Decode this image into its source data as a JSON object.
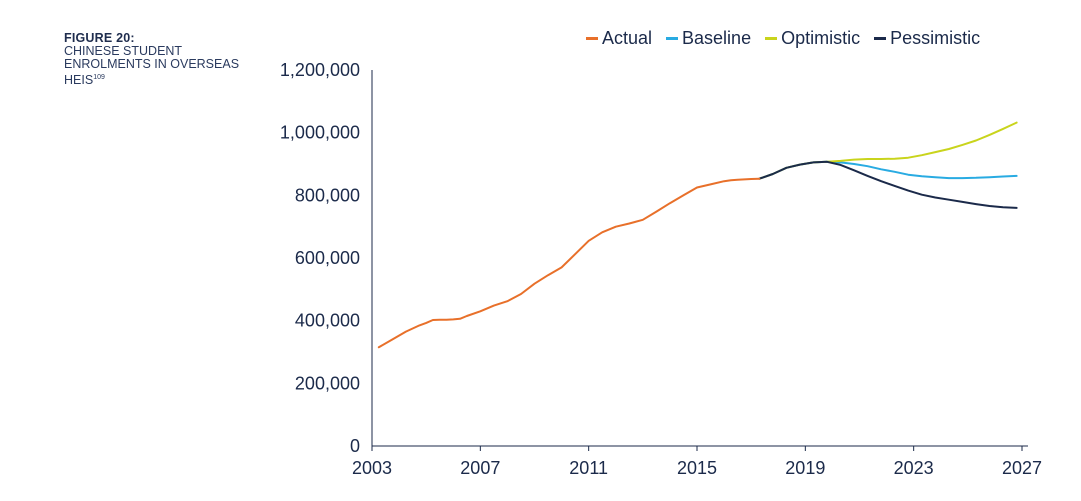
{
  "caption": {
    "number": "FIGURE 20:",
    "title": "CHINESE STUDENT ENROLMENTS IN OVERSEAS HEIS",
    "footnote": "109"
  },
  "chart_data": {
    "type": "line",
    "xlim": [
      2003,
      2027
    ],
    "ylim": [
      0,
      1200000
    ],
    "xticks": [
      2003,
      2007,
      2011,
      2015,
      2019,
      2023,
      2027
    ],
    "yticks": [
      0,
      200000,
      400000,
      600000,
      800000,
      1000000,
      1200000
    ],
    "xtick_labels": [
      "2003",
      "2007",
      "2011",
      "2015",
      "2019",
      "2023",
      "2027"
    ],
    "ytick_labels": [
      "0",
      "200,000",
      "400,000",
      "600,000",
      "800,000",
      "1,000,000",
      "1,200,000"
    ],
    "legend_position": "top-right",
    "series": [
      {
        "name": "Actual",
        "color": "#e8702a",
        "x": [
          2003.25,
          2003.75,
          2004.25,
          2004.75,
          2005.0,
          2005.25,
          2005.5,
          2005.75,
          2006.0,
          2006.25,
          2006.5,
          2007.0,
          2007.5,
          2008.0,
          2008.5,
          2009.0,
          2009.5,
          2010.0,
          2010.5,
          2011.0,
          2011.5,
          2012.0,
          2012.5,
          2013.0,
          2013.5,
          2014.0,
          2014.5,
          2015.0,
          2015.5,
          2016.0,
          2016.25,
          2016.5,
          2016.75,
          2017.0,
          2017.3
        ],
        "y": [
          315000,
          340000,
          365000,
          385000,
          393000,
          402000,
          403000,
          403000,
          404000,
          406000,
          415000,
          430000,
          448000,
          462000,
          485000,
          518000,
          545000,
          570000,
          612000,
          655000,
          682000,
          700000,
          710000,
          722000,
          748000,
          775000,
          800000,
          825000,
          835000,
          845000,
          848000,
          850000,
          851000,
          852000,
          853000
        ]
      },
      {
        "name": "Baseline",
        "color": "#29abe2",
        "x": [
          2017.3,
          2017.8,
          2018.3,
          2018.8,
          2019.3,
          2019.8,
          2020.3,
          2020.8,
          2021.3,
          2021.8,
          2022.3,
          2022.8,
          2023.3,
          2023.8,
          2024.3,
          2024.8,
          2025.3,
          2025.8,
          2026.3,
          2026.8
        ],
        "y": [
          853000,
          868000,
          888000,
          898000,
          905000,
          907000,
          905000,
          900000,
          893000,
          883000,
          875000,
          866000,
          861000,
          858000,
          855000,
          855000,
          856000,
          858000,
          860000,
          862000
        ]
      },
      {
        "name": "Optimistic",
        "color": "#c9d41c",
        "x": [
          2017.3,
          2017.8,
          2018.3,
          2018.8,
          2019.3,
          2019.8,
          2020.3,
          2020.8,
          2021.3,
          2021.8,
          2022.3,
          2022.8,
          2023.3,
          2023.8,
          2024.3,
          2024.8,
          2025.3,
          2025.8,
          2026.3,
          2026.8
        ],
        "y": [
          853000,
          868000,
          888000,
          898000,
          905000,
          907000,
          910000,
          914000,
          916000,
          916000,
          917000,
          920000,
          928000,
          938000,
          948000,
          961000,
          975000,
          993000,
          1012000,
          1032000
        ]
      },
      {
        "name": "Pessimistic",
        "color": "#1b2a4a",
        "x": [
          2017.3,
          2017.8,
          2018.3,
          2018.8,
          2019.3,
          2019.8,
          2020.3,
          2020.8,
          2021.3,
          2021.8,
          2022.3,
          2022.8,
          2023.3,
          2023.8,
          2024.3,
          2024.8,
          2025.3,
          2025.8,
          2026.3,
          2026.8
        ],
        "y": [
          853000,
          868000,
          888000,
          898000,
          905000,
          907000,
          897000,
          880000,
          862000,
          845000,
          830000,
          815000,
          802000,
          793000,
          786000,
          779000,
          772000,
          766000,
          762000,
          760000
        ]
      }
    ]
  }
}
